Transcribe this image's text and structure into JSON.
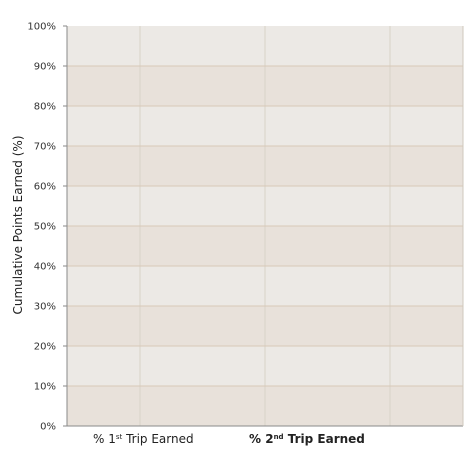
{
  "chart_data": {
    "type": "bar",
    "title": "",
    "xlabel": "",
    "ylabel": "Cumulative Points Earned (%)",
    "ylim": [
      0,
      100
    ],
    "y_ticks": [
      "0%",
      "10%",
      "20%",
      "30%",
      "40%",
      "50%",
      "60%",
      "70%",
      "80%",
      "90%",
      "100%"
    ],
    "categories": [],
    "series": [],
    "grid": true,
    "legend": {
      "placement": "bottom",
      "items": [
        {
          "prefix": "% 1",
          "sup": "st",
          "suffix": " Trip Earned",
          "bold": false
        },
        {
          "prefix": "% 2",
          "sup": "nd",
          "suffix": " Trip Earned",
          "bold": true
        }
      ]
    },
    "colors": {
      "band_light": "#ece9e5",
      "band_dark": "#e8e1da",
      "grid_h": "#d8c9b8",
      "grid_v": "#d7d2c8",
      "axis": "#8a8a8a"
    }
  }
}
